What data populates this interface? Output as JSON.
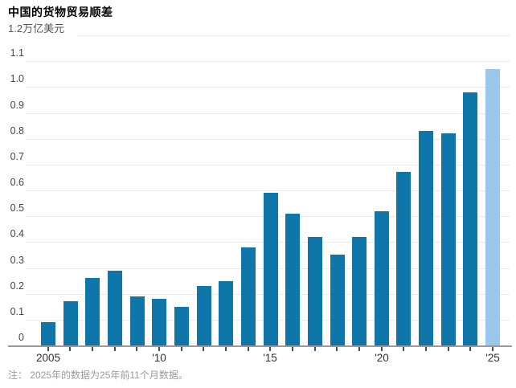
{
  "header": {
    "title": "中国的货物贸易顺差"
  },
  "chart": {
    "unit_label": "1.2万亿美元",
    "note": "注： 2025年的数据为25年前11个月数据。"
  },
  "colors": {
    "bar": "#0e76a8",
    "bar_highlight": "#9bc7eb",
    "gridline": "#ebebeb",
    "axis_line": "#9a9a9a",
    "tick_mark": "#4d4d4d",
    "y_label": "#454545",
    "unit_label": "#555555",
    "x_label": "#333333",
    "note_text": "#9b9b9b",
    "title_text": "#000000",
    "background": "#ffffff"
  },
  "chart_data": {
    "type": "bar",
    "title": "中国的货物贸易顺差",
    "unit": "万亿美元",
    "categories": [
      "2005",
      "2006",
      "2007",
      "2008",
      "2009",
      "2010",
      "2011",
      "2012",
      "2013",
      "2014",
      "2015",
      "2016",
      "2017",
      "2018",
      "2019",
      "2020",
      "2021",
      "2022",
      "2023",
      "2024",
      "2025"
    ],
    "values": [
      0.09,
      0.17,
      0.26,
      0.29,
      0.19,
      0.18,
      0.15,
      0.23,
      0.25,
      0.38,
      0.59,
      0.51,
      0.42,
      0.35,
      0.42,
      0.52,
      0.67,
      0.83,
      0.82,
      0.98,
      1.07
    ],
    "highlight_last_bar": true,
    "ylim": [
      0,
      1.2
    ],
    "ytick_step": 0.1,
    "ytick_labels": [
      "0",
      "0.1",
      "0.2",
      "0.3",
      "0.4",
      "0.5",
      "0.6",
      "0.7",
      "0.8",
      "0.9",
      "1.0",
      "1.1"
    ],
    "ytick_top_label": "1.2万亿美元",
    "xtick_marks_every_bar": true,
    "xtick_labels": [
      {
        "index": 0,
        "label": "2005"
      },
      {
        "index": 5,
        "label": "'10"
      },
      {
        "index": 10,
        "label": "'15"
      },
      {
        "index": 15,
        "label": "'20"
      },
      {
        "index": 20,
        "label": "'25"
      }
    ],
    "grid": true,
    "legend": false,
    "note": "注： 2025年的数据为25年前11个月数据。"
  }
}
